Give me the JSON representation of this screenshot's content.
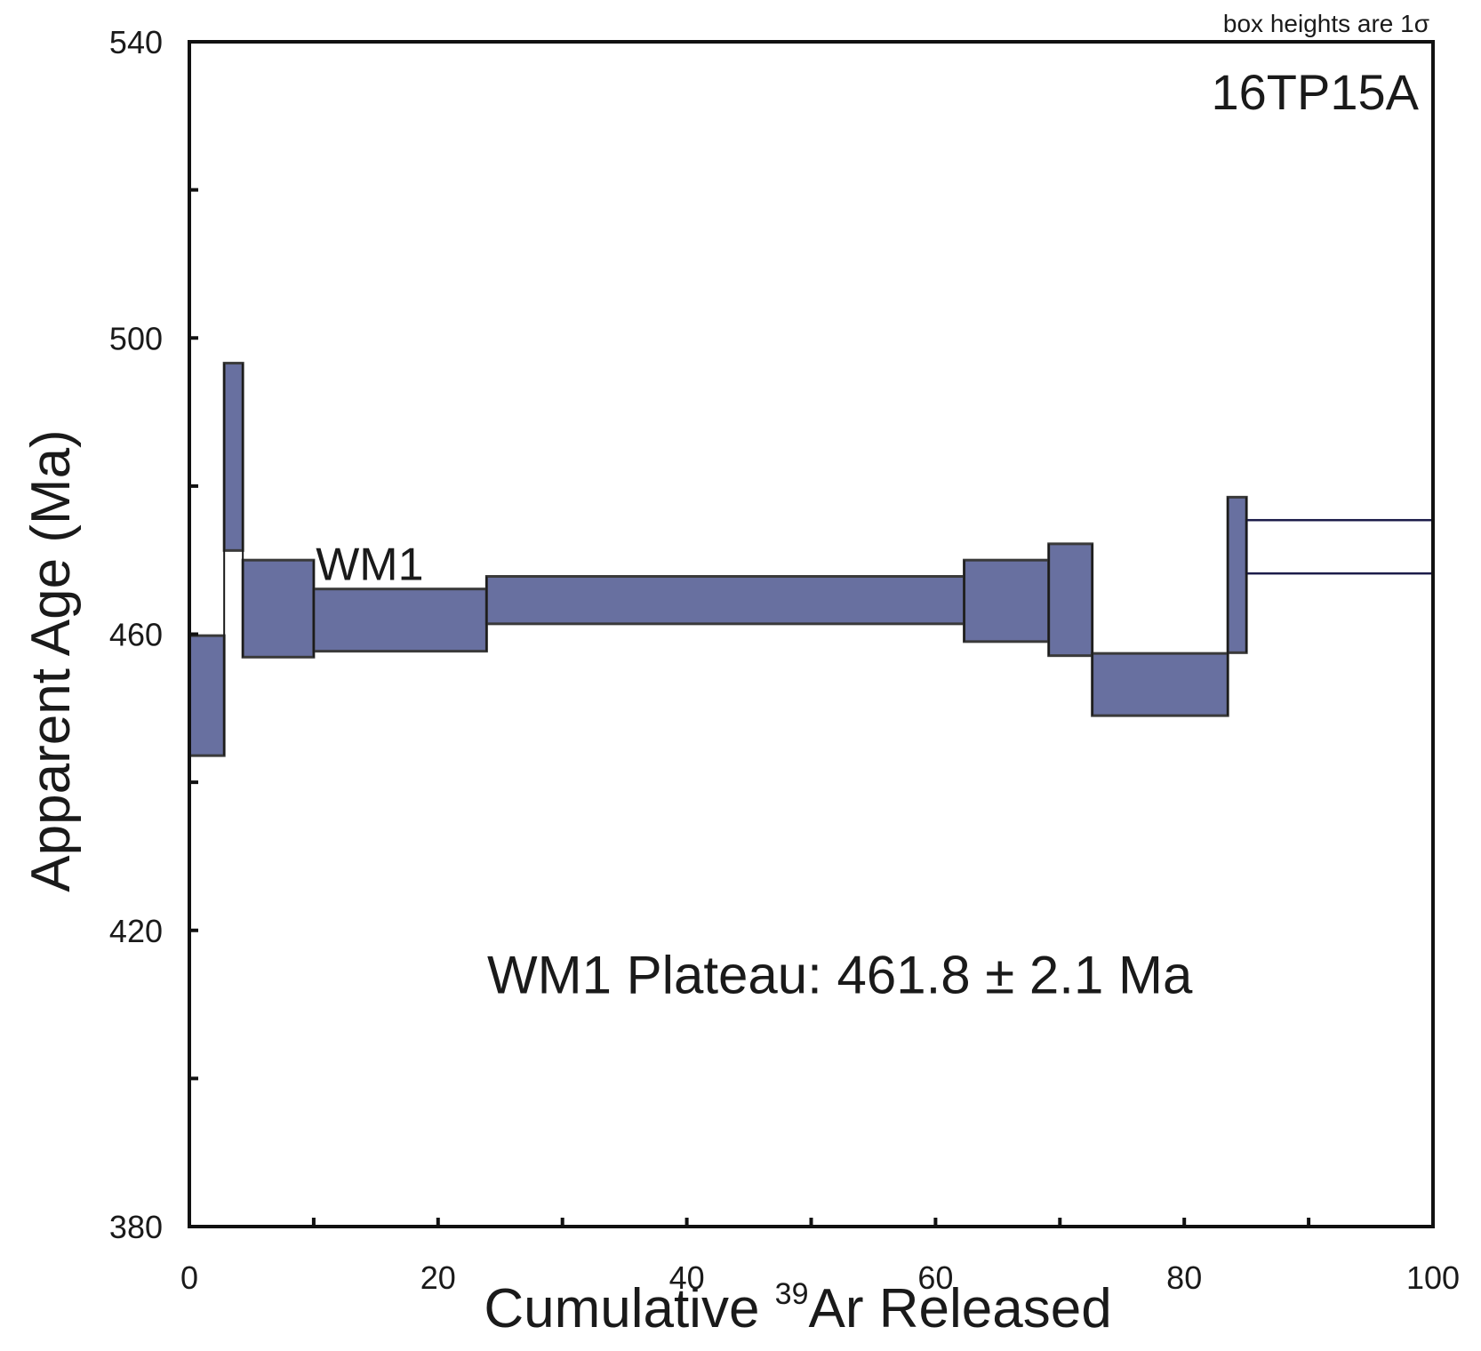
{
  "chart_data": {
    "type": "step-spectrum",
    "sample": "16TP15A",
    "note": "box heights are 1σ",
    "xlabel": {
      "prefix": "Cumulative ",
      "superscript": "39",
      "suffix": "Ar Released"
    },
    "ylabel": "Apparent Age (Ma)",
    "xlim": [
      0,
      100
    ],
    "ylim": [
      380,
      540
    ],
    "x_ticks": [
      0,
      20,
      40,
      60,
      80,
      100
    ],
    "y_ticks": [
      380,
      420,
      460,
      500,
      540
    ],
    "plateau_label": "WM1",
    "plateau_text": "WM1 Plateau: 461.8 ± 2.1 Ma",
    "fill_color": "#6870a0",
    "edge_color": "#3a3a3a",
    "steps": [
      {
        "x0": 0.0,
        "x1": 2.8,
        "age_low": 443.6,
        "age_high": 459.8,
        "in_plateau": true
      },
      {
        "x0": 2.8,
        "x1": 4.3,
        "age_low": 471.3,
        "age_high": 496.6,
        "in_plateau": true
      },
      {
        "x0": 4.3,
        "x1": 10.0,
        "age_low": 456.9,
        "age_high": 470.0,
        "in_plateau": true
      },
      {
        "x0": 10.0,
        "x1": 23.9,
        "age_low": 457.7,
        "age_high": 466.1,
        "in_plateau": true
      },
      {
        "x0": 23.9,
        "x1": 62.3,
        "age_low": 461.4,
        "age_high": 467.8,
        "in_plateau": true
      },
      {
        "x0": 62.3,
        "x1": 69.1,
        "age_low": 459.0,
        "age_high": 470.0,
        "in_plateau": true
      },
      {
        "x0": 69.1,
        "x1": 72.6,
        "age_low": 457.1,
        "age_high": 472.2,
        "in_plateau": true
      },
      {
        "x0": 72.6,
        "x1": 83.5,
        "age_low": 449.0,
        "age_high": 457.4,
        "in_plateau": true
      },
      {
        "x0": 83.5,
        "x1": 85.0,
        "age_low": 457.5,
        "age_high": 478.5,
        "in_plateau": true
      },
      {
        "x0": 85.0,
        "x1": 100.0,
        "age_low": 468.2,
        "age_high": 475.4,
        "in_plateau": false
      }
    ]
  }
}
